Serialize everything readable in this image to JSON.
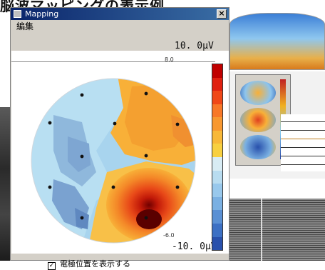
{
  "heading": "脳波マッピングの表示例",
  "window": {
    "title": "Mapping",
    "close_symbol": "×",
    "menu": [
      "編集"
    ]
  },
  "map": {
    "max_label": "10. 0μV",
    "min_label": "-10. 0μV",
    "scale_top": "8.0",
    "scale_bottom": "-6.0"
  },
  "options": {
    "show_electrodes_label": "電極位置を表示する",
    "show_electrodes_checked": true,
    "check_mark": "✓"
  },
  "colors": {
    "colorbar": [
      "#c00000",
      "#e02010",
      "#f04818",
      "#f87828",
      "#f89830",
      "#f8b838",
      "#f8d040",
      "#d8ecf4",
      "#b8dcf0",
      "#98c8ec",
      "#7ab0e2",
      "#5a90d4",
      "#3c70c4",
      "#2850ac"
    ]
  }
}
